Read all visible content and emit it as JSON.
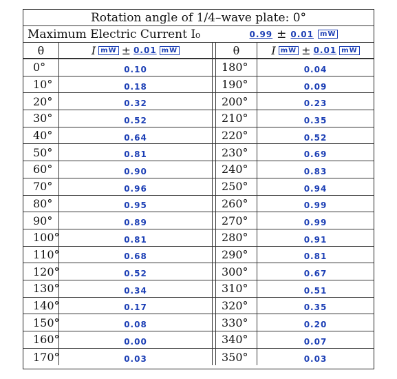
{
  "title": "Rotation angle of 1/4–wave plate: 0°",
  "imax": {
    "label": "Maximum Electric Current I₀",
    "value": "0.99",
    "pm": "±",
    "uncertainty": "0.01",
    "unit": "mW"
  },
  "headers": {
    "theta": "θ",
    "current": "I",
    "unit_a": "mW",
    "pm": "±",
    "uncertainty": "0.01",
    "unit_b": "mW"
  },
  "rows": [
    {
      "a1": "0°",
      "v1": "0.10",
      "a2": "180°",
      "v2": "0.04"
    },
    {
      "a1": "10°",
      "v1": "0.18",
      "a2": "190°",
      "v2": "0.09"
    },
    {
      "a1": "20°",
      "v1": "0.32",
      "a2": "200°",
      "v2": "0.23"
    },
    {
      "a1": "30°",
      "v1": "0.52",
      "a2": "210°",
      "v2": "0.35"
    },
    {
      "a1": "40°",
      "v1": "0.64",
      "a2": "220°",
      "v2": "0.52"
    },
    {
      "a1": "50°",
      "v1": "0.81",
      "a2": "230°",
      "v2": "0.69"
    },
    {
      "a1": "60°",
      "v1": "0.90",
      "a2": "240°",
      "v2": "0.83"
    },
    {
      "a1": "70°",
      "v1": "0.96",
      "a2": "250°",
      "v2": "0.94"
    },
    {
      "a1": "80°",
      "v1": "0.95",
      "a2": "260°",
      "v2": "0.99"
    },
    {
      "a1": "90°",
      "v1": "0.89",
      "a2": "270°",
      "v2": "0.99"
    },
    {
      "a1": "100°",
      "v1": "0.81",
      "a2": "280°",
      "v2": "0.91"
    },
    {
      "a1": "110°",
      "v1": "0.68",
      "a2": "290°",
      "v2": "0.81"
    },
    {
      "a1": "120°",
      "v1": "0.52",
      "a2": "300°",
      "v2": "0.67"
    },
    {
      "a1": "130°",
      "v1": "0.34",
      "a2": "310°",
      "v2": "0.51"
    },
    {
      "a1": "140°",
      "v1": "0.17",
      "a2": "320°",
      "v2": "0.35"
    },
    {
      "a1": "150°",
      "v1": "0.08",
      "a2": "330°",
      "v2": "0.20"
    },
    {
      "a1": "160°",
      "v1": "0.00",
      "a2": "340°",
      "v2": "0.07"
    },
    {
      "a1": "170°",
      "v1": "0.03",
      "a2": "350°",
      "v2": "0.03"
    }
  ]
}
